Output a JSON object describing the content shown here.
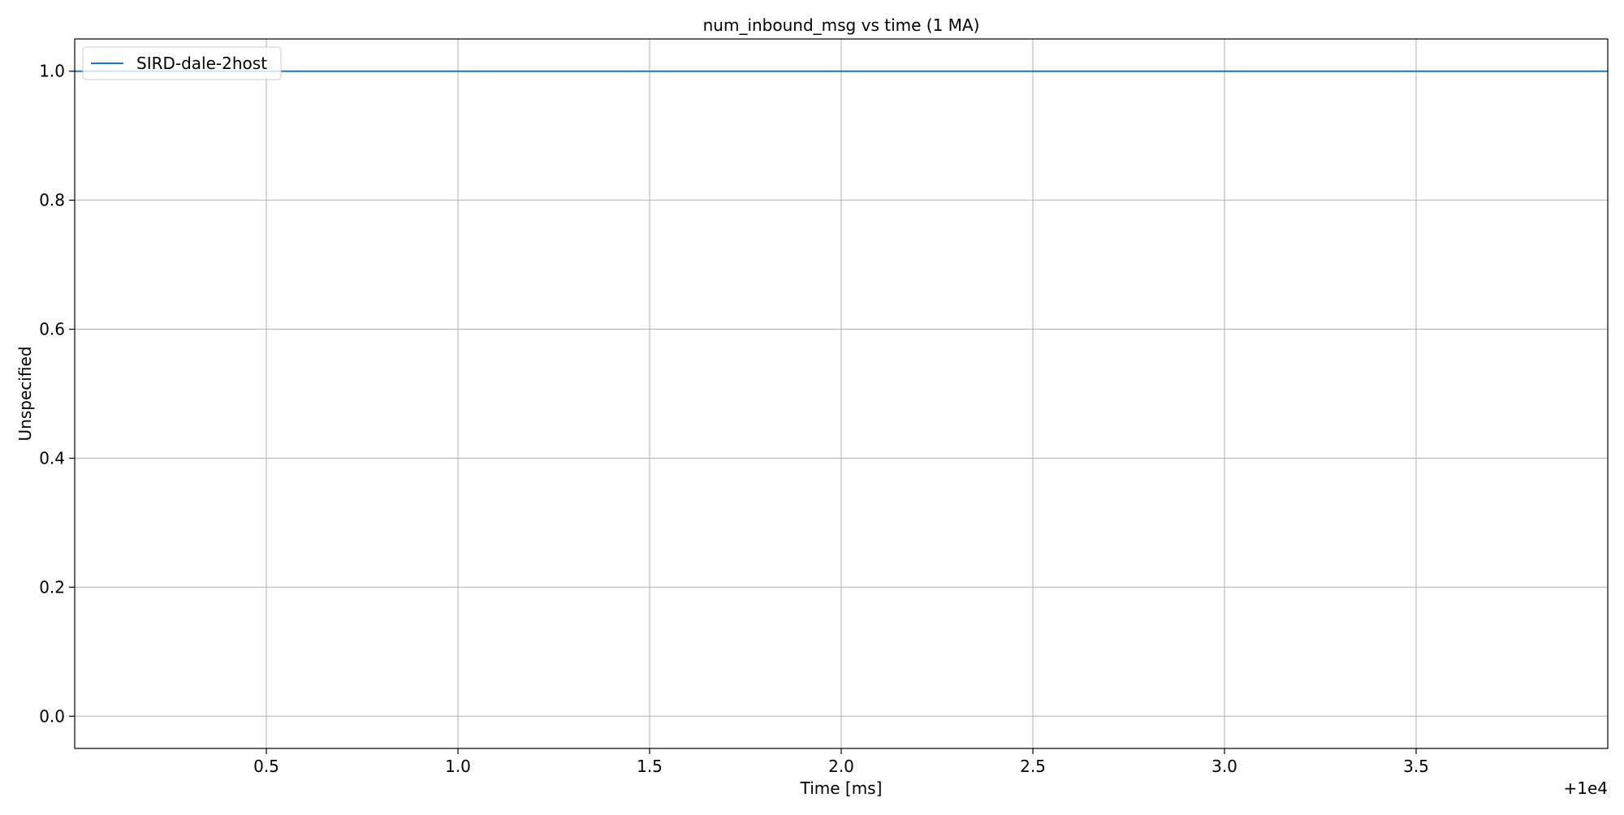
{
  "chart_data": {
    "type": "line",
    "title": "num_inbound_msg vs time (1 MA)",
    "xlabel": "Time [ms]",
    "ylabel": "Unspecified",
    "x_offset_label": "+1e4",
    "x_offset": 10000,
    "xlim": [
      10000.0,
      10004.0
    ],
    "ylim": [
      -0.05,
      1.05
    ],
    "x_ticks": [
      10000.5,
      10001.0,
      10001.5,
      10002.0,
      10002.5,
      10003.0,
      10003.5
    ],
    "x_tick_labels": [
      "0.5",
      "1.0",
      "1.5",
      "2.0",
      "2.5",
      "3.0",
      "3.5"
    ],
    "y_ticks": [
      0.0,
      0.2,
      0.4,
      0.6,
      0.8,
      1.0
    ],
    "y_tick_labels": [
      "0.0",
      "0.2",
      "0.4",
      "0.6",
      "0.8",
      "1.0"
    ],
    "grid": true,
    "legend_position": "top-left",
    "series": [
      {
        "name": "SIRD-dale-2host",
        "color": "#1f77b4",
        "x": [
          10000.0,
          10004.0
        ],
        "y": [
          1.0,
          1.0
        ]
      }
    ]
  }
}
